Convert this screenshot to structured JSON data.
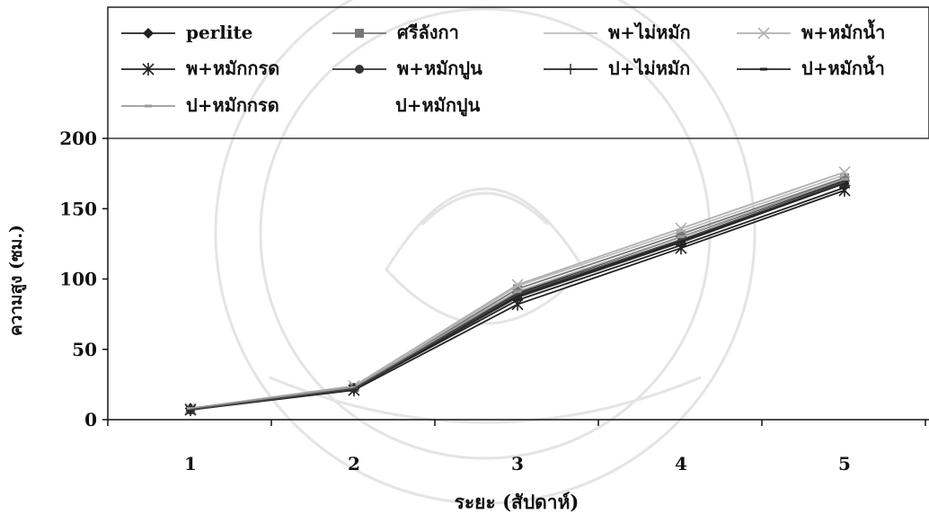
{
  "chart_data": {
    "type": "line",
    "title": "",
    "xlabel": "ระยะ (สัปดาห์)",
    "ylabel": "ความสูง (ซม.)",
    "categories": [
      "1",
      "2",
      "3",
      "4",
      "5"
    ],
    "ylim": [
      0,
      200
    ],
    "yticks": [
      "0",
      "50",
      "100",
      "150",
      "200"
    ],
    "grid": false,
    "legend_position": "top",
    "series": [
      {
        "name": "perlite",
        "values": [
          8,
          22,
          90,
          130,
          170
        ],
        "color": "#222222",
        "marker": "diamond"
      },
      {
        "name": "ศรีลังกา",
        "values": [
          7,
          23,
          93,
          132,
          172
        ],
        "color": "#777777",
        "marker": "square"
      },
      {
        "name": "พ+ไม่หมัก",
        "values": [
          8,
          23,
          95,
          134,
          174
        ],
        "color": "#bbbbbb",
        "marker": "none"
      },
      {
        "name": "พ+หมักน้ำ",
        "values": [
          8,
          24,
          96,
          136,
          176
        ],
        "color": "#b0b0b0",
        "marker": "x"
      },
      {
        "name": "พ+หมักกรด",
        "values": [
          7,
          21,
          82,
          122,
          163
        ],
        "color": "#222222",
        "marker": "asterisk"
      },
      {
        "name": "พ+หมักปูน",
        "values": [
          7,
          22,
          87,
          126,
          168
        ],
        "color": "#333333",
        "marker": "circle"
      },
      {
        "name": "ป+ไม่หมัก",
        "values": [
          8,
          22,
          85,
          124,
          165
        ],
        "color": "#222222",
        "marker": "plus"
      },
      {
        "name": "ป+หมักน้ำ",
        "values": [
          7,
          22,
          88,
          127,
          168
        ],
        "color": "#222222",
        "marker": "dash"
      },
      {
        "name": "ป+หมักกรด",
        "values": [
          8,
          23,
          91,
          130,
          171
        ],
        "color": "#999999",
        "marker": "dash"
      },
      {
        "name": "ป+หมักปูน",
        "values": [
          7,
          22,
          89,
          128,
          169
        ],
        "color": "#444444",
        "marker": "none"
      }
    ]
  }
}
